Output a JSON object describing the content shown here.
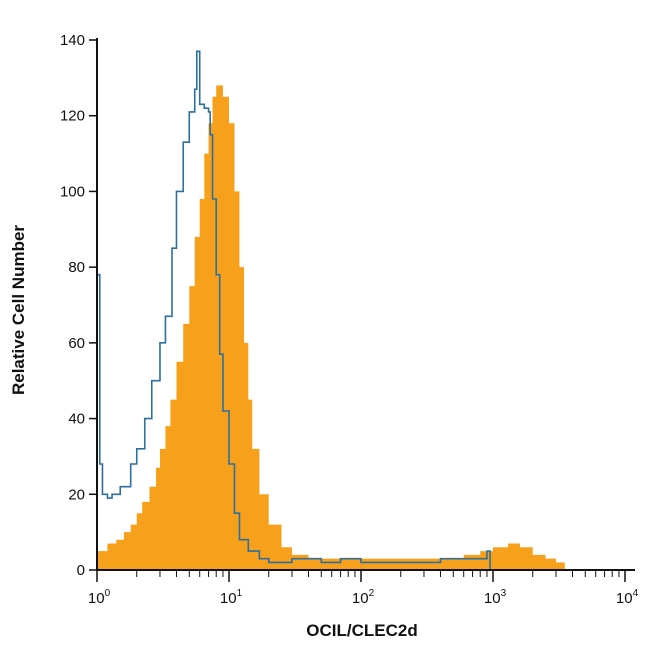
{
  "chart_data": {
    "type": "area",
    "title": "",
    "xlabel": "OCIL/CLEC2d",
    "ylabel": "Relative Cell Number",
    "x_scale": "log",
    "xlim": [
      1,
      10000
    ],
    "ylim": [
      0,
      140
    ],
    "grid": false,
    "legend": "none",
    "y_ticks": [
      "0",
      "20",
      "40",
      "60",
      "80",
      "100",
      "120",
      "140"
    ],
    "x_ticks": [
      {
        "base": "10",
        "exp": "0"
      },
      {
        "base": "10",
        "exp": "1"
      },
      {
        "base": "10",
        "exp": "2"
      },
      {
        "base": "10",
        "exp": "3"
      },
      {
        "base": "10",
        "exp": "4"
      }
    ],
    "series": [
      {
        "style": "filled",
        "color": "#F7A01B",
        "points": [
          [
            1,
            5
          ],
          [
            1.2,
            7
          ],
          [
            1.4,
            8
          ],
          [
            1.6,
            10
          ],
          [
            1.8,
            12
          ],
          [
            2.0,
            15
          ],
          [
            2.2,
            18
          ],
          [
            2.5,
            22
          ],
          [
            2.8,
            27
          ],
          [
            3.0,
            32
          ],
          [
            3.3,
            38
          ],
          [
            3.6,
            45
          ],
          [
            4.0,
            55
          ],
          [
            4.5,
            65
          ],
          [
            5.0,
            75
          ],
          [
            5.5,
            88
          ],
          [
            6.0,
            98
          ],
          [
            6.5,
            110
          ],
          [
            7.0,
            118
          ],
          [
            7.5,
            125
          ],
          [
            8.0,
            128
          ],
          [
            8.5,
            128
          ],
          [
            9.0,
            125
          ],
          [
            10,
            118
          ],
          [
            11,
            100
          ],
          [
            12,
            80
          ],
          [
            13,
            60
          ],
          [
            14,
            45
          ],
          [
            15,
            32
          ],
          [
            17,
            20
          ],
          [
            20,
            12
          ],
          [
            25,
            6
          ],
          [
            30,
            4
          ],
          [
            40,
            3
          ],
          [
            60,
            3
          ],
          [
            100,
            3
          ],
          [
            200,
            3
          ],
          [
            400,
            3
          ],
          [
            600,
            4
          ],
          [
            800,
            5
          ],
          [
            1000,
            6
          ],
          [
            1300,
            7
          ],
          [
            1600,
            6
          ],
          [
            2000,
            4
          ],
          [
            2500,
            3
          ],
          [
            3000,
            2
          ],
          [
            3500,
            1
          ]
        ]
      },
      {
        "style": "outline",
        "color": "#2E6F9E",
        "points": [
          [
            1,
            78
          ],
          [
            1.05,
            28
          ],
          [
            1.1,
            20
          ],
          [
            1.2,
            19
          ],
          [
            1.3,
            20
          ],
          [
            1.5,
            22
          ],
          [
            1.8,
            28
          ],
          [
            2.0,
            32
          ],
          [
            2.3,
            40
          ],
          [
            2.6,
            50
          ],
          [
            3.0,
            60
          ],
          [
            3.3,
            67
          ],
          [
            3.7,
            85
          ],
          [
            4.0,
            100
          ],
          [
            4.5,
            113
          ],
          [
            5.0,
            121
          ],
          [
            5.5,
            127
          ],
          [
            5.7,
            137
          ],
          [
            6.0,
            123
          ],
          [
            6.5,
            122
          ],
          [
            7.0,
            121
          ],
          [
            7.2,
            115
          ],
          [
            7.5,
            98
          ],
          [
            8.0,
            78
          ],
          [
            8.5,
            57
          ],
          [
            9.0,
            42
          ],
          [
            10,
            28
          ],
          [
            11,
            15
          ],
          [
            12,
            8
          ],
          [
            14,
            5
          ],
          [
            17,
            3
          ],
          [
            20,
            2
          ],
          [
            30,
            3
          ],
          [
            50,
            2
          ],
          [
            70,
            3
          ],
          [
            100,
            2
          ],
          [
            200,
            2
          ],
          [
            400,
            3
          ],
          [
            700,
            3
          ],
          [
            900,
            5
          ],
          [
            950,
            0
          ]
        ]
      }
    ]
  }
}
